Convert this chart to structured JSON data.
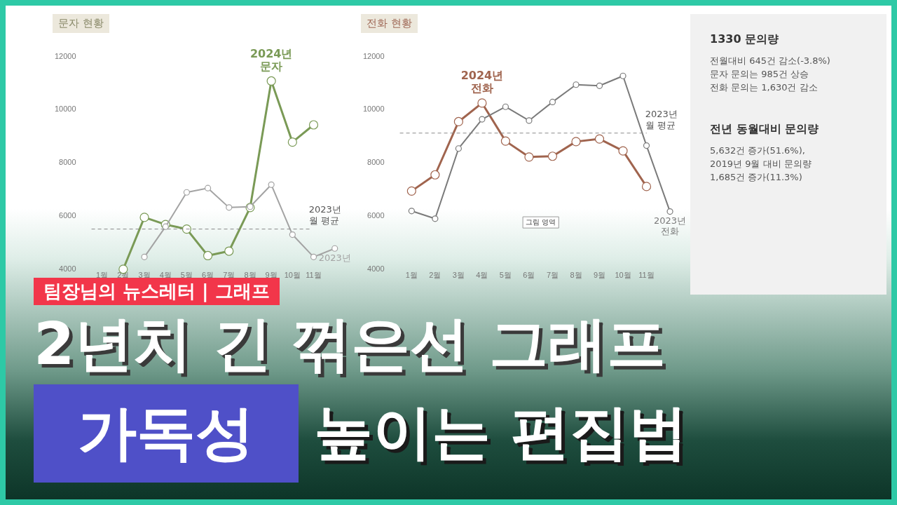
{
  "chart_data": [
    {
      "type": "line",
      "title": "문자 현황",
      "categories": [
        "1월",
        "2월",
        "3월",
        "4월",
        "5월",
        "6월",
        "7월",
        "8월",
        "9월",
        "10월",
        "11월",
        null
      ],
      "series": [
        {
          "name": "2024년 문자",
          "color": "#7a9a56",
          "values": [
            null,
            4000,
            5950,
            5680,
            5510,
            4510,
            4680,
            6320,
            11080,
            8780,
            9430,
            null
          ]
        },
        {
          "name": "2023년",
          "color": "#a3a3a3",
          "values": [
            null,
            null,
            4460,
            5600,
            6890,
            7050,
            6320,
            6350,
            7180,
            5300,
            4460,
            4780
          ]
        }
      ],
      "ylim": [
        4000,
        12000
      ],
      "yticks": [
        4000,
        6000,
        8000,
        10000,
        12000
      ],
      "grid": false,
      "legend": false,
      "marker": "circle",
      "ref_lines": [
        {
          "axis": "y",
          "value": 5510,
          "label": "2023년 월 평균",
          "color": "#8a8a8a",
          "line_style": "dashed"
        }
      ]
    },
    {
      "type": "line",
      "title": "전화 현황",
      "categories": [
        "1월",
        "2월",
        "3월",
        "4월",
        "5월",
        "6월",
        "7월",
        "8월",
        "9월",
        "10월",
        "11월",
        null
      ],
      "series": [
        {
          "name": "2024년 전화",
          "color": "#a0644e",
          "values": [
            6940,
            7550,
            9550,
            10250,
            8820,
            8220,
            8250,
            8800,
            8900,
            8450,
            7110,
            null
          ]
        },
        {
          "name": "2023년 전화",
          "color": "#7a7a7a",
          "values": [
            6190,
            5900,
            8540,
            9640,
            10110,
            9590,
            10290,
            10940,
            10900,
            11270,
            8650,
            6170
          ]
        }
      ],
      "ylim": [
        4000,
        12000
      ],
      "yticks": [
        4000,
        6000,
        8000,
        10000,
        12000
      ],
      "grid": false,
      "legend": false,
      "marker": "circle",
      "ref_lines": [
        {
          "axis": "y",
          "value": 9120,
          "label": "2023년 월 평균",
          "color": "#8a8a8a",
          "line_style": "dashed"
        }
      ],
      "annotations": [
        "그림 영역"
      ]
    },
    {
      "type": "other",
      "title": "1330 문의량",
      "annotations": [
        "전월대비 645건 감소(-3.8%)",
        "문자 문의는 985건 상승",
        "전화 문의는 1,630건 감소"
      ]
    },
    {
      "type": "other",
      "title": "전년 동월대비 문의량",
      "annotations": [
        "5,632건 증가(51.6%),",
        "2019년 9월 대비 문의량",
        "1,685건 증가(11.3%)"
      ]
    },
    {
      "type": "other",
      "title": "2년치 긴 꺾은선 그래프",
      "annotations": [
        "팀장님의 뉴스레터 | 그래프",
        "가독성",
        "높이는 편집법"
      ]
    }
  ]
}
